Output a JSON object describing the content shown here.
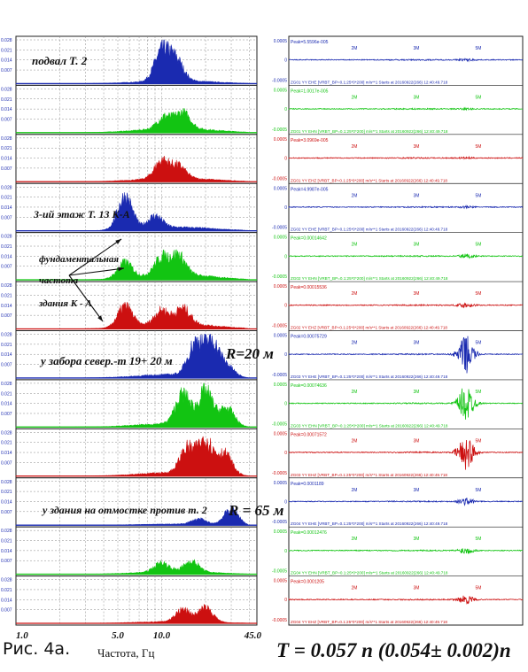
{
  "figure_caption": "Рис. 4а.",
  "axis_caption": "Частота, Гц",
  "formula": "T = 0.057 n  (0.054± 0.002)n",
  "chart_data": [
    {
      "type": "area",
      "name": "spectra",
      "xlabel": "Частота, Гц",
      "x_ticks": [
        "1.0",
        "5.0",
        "10.0",
        "45.0"
      ],
      "y_ticks": [
        "0.028",
        "0.021",
        "0.014",
        "0.007"
      ],
      "grid": true,
      "channels": [
        {
          "color": "#1a2ab0",
          "peaks": [
            [
              10.0,
              0.85
            ],
            [
              12.5,
              0.6
            ]
          ],
          "base": 0.08
        },
        {
          "color": "#12c412",
          "peaks": [
            [
              10.5,
              0.35
            ],
            [
              14,
              0.45
            ]
          ],
          "base": 0.12
        },
        {
          "color": "#cc1010",
          "peaks": [
            [
              10.0,
              0.5
            ],
            [
              13,
              0.35
            ]
          ],
          "base": 0.1
        },
        {
          "color": "#1a2ab0",
          "peaks": [
            [
              5.6,
              0.95
            ],
            [
              9,
              0.35
            ]
          ],
          "base": 0.1
        },
        {
          "color": "#12c412",
          "peaks": [
            [
              5.6,
              0.45
            ],
            [
              10,
              0.5
            ],
            [
              13,
              0.55
            ]
          ],
          "base": 0.15
        },
        {
          "color": "#cc1010",
          "peaks": [
            [
              5.6,
              0.6
            ],
            [
              10,
              0.4
            ],
            [
              14,
              0.45
            ]
          ],
          "base": 0.15
        },
        {
          "color": "#1a2ab0",
          "peaks": [
            [
              17,
              0.9
            ],
            [
              22,
              0.95
            ],
            [
              28,
              0.3
            ]
          ],
          "base": 0.1
        },
        {
          "color": "#12c412",
          "peaks": [
            [
              14,
              0.85
            ],
            [
              20,
              0.95
            ],
            [
              28,
              0.5
            ]
          ],
          "base": 0.1
        },
        {
          "color": "#cc1010",
          "peaks": [
            [
              15,
              0.7
            ],
            [
              20,
              0.95
            ],
            [
              27,
              0.6
            ]
          ],
          "base": 0.1
        },
        {
          "color": "#1a2ab0",
          "peaks": [
            [
              18,
              0.15
            ],
            [
              30,
              0.45
            ]
          ],
          "base": 0.03
        },
        {
          "color": "#12c412",
          "peaks": [
            [
              10,
              0.25
            ],
            [
              16,
              0.3
            ]
          ],
          "base": 0.08
        },
        {
          "color": "#cc1010",
          "peaks": [
            [
              14,
              0.35
            ],
            [
              20,
              0.4
            ]
          ],
          "base": 0.05
        }
      ],
      "annotations": [
        "подвал Т. 2",
        "3-ий этаж  Т. 13 К-А",
        "фундаментальная",
        "частота",
        "здания    К - А",
        "у забора север.-т 19+ 20 м",
        "R=20 м",
        "у здания на отмостке против т. 2",
        "R = 65 м"
      ]
    },
    {
      "type": "line",
      "name": "seismograms",
      "y_ticks": [
        "0.0005",
        "0",
        "-0.0005"
      ],
      "x_ticks": [
        "2M",
        "3M",
        "5M"
      ],
      "channels": [
        {
          "color": "#1a2ab0",
          "peak": "Peak=5.5596e-005",
          "label": "ZG01 YY EHE  [VRBT_BP=0.1:25*0*200]  m/s**1 Starts at 20160922(266) 12:40:49.718",
          "burst": 0.05
        },
        {
          "color": "#12c412",
          "peak": "Peak=1.0017e-005",
          "label": "ZG01 YY EHN  [VRBT_BP=0.1:25*0*200]  m/s**1 Starts at 20160922(266) 12:40:49.718",
          "burst": 0.03
        },
        {
          "color": "#cc1010",
          "peak": "Peak=3.0969e-005",
          "label": "ZG01 YY EHZ  [VRBT_BP=0.1:25*0*200]  m/s**1 Starts at 20160922(266) 12:40:49.718",
          "burst": 0.03
        },
        {
          "color": "#1a2ab0",
          "peak": "Peak=4.9987e-005",
          "label": "ZG02 YY EHE  [VRBT_BP=0.1:25*0*200]  m/s**1 Starts at 20160922(266) 12:40:49.718",
          "burst": 0.04
        },
        {
          "color": "#12c412",
          "peak": "Peak=0.00014642",
          "label": "ZG02 YY EHN  [VRBT_BP=0.1:25*0*200]  m/s**1 Starts at 20160922(266) 12:40:49.718",
          "burst": 0.1
        },
        {
          "color": "#cc1010",
          "peak": "Peak=0.00015536",
          "label": "ZG02 YY EHZ  [VRBT_BP=0.1:25*0*200]  m/s**1 Starts at 20160922(266) 12:40:49.718",
          "burst": 0.1
        },
        {
          "color": "#1a2ab0",
          "peak": "Peak=0.00075729",
          "label": "ZG03 YY EHE  [VRBT_BP=0.1:25*0*200]  m/s**1 Starts at 20160922(266) 12:40:49.718",
          "burst": 0.85
        },
        {
          "color": "#12c412",
          "peak": "Peak=0.00074636",
          "label": "ZG03 YY EHN  [VRBT_BP=0.1:25*0*200]  m/s**1 Starts at 20160922(266) 12:40:49.718",
          "burst": 0.85
        },
        {
          "color": "#cc1010",
          "peak": "Peak=0.00071572",
          "label": "ZG03 YY EHZ  [VRBT_BP=0.1:25*0*200]  m/s**1 Starts at 20160922(266) 12:40:49.718",
          "burst": 0.8
        },
        {
          "color": "#1a2ab0",
          "peak": "Peak=0.0001189",
          "label": "ZG04 YY EHE  [VRBT_BP=0.1:25*0*200]  m/s**1 Starts at 20160922(266) 12:40:49.718",
          "burst": 0.15
        },
        {
          "color": "#12c412",
          "peak": "Peak=0.00012476",
          "label": "ZG04 YY EHN  [VRBT_BP=0.1:25*0*200]  m/s**1 Starts at 20160922(266) 12:40:49.718",
          "burst": 0.15
        },
        {
          "color": "#cc1010",
          "peak": "Peak=0.0001205",
          "label": "ZG04 YY EHZ  [VRBT_BP=0.1:25*0*200]  m/s**1 Starts at 20160922(266) 12:40:49.718",
          "burst": 0.18
        }
      ]
    }
  ]
}
